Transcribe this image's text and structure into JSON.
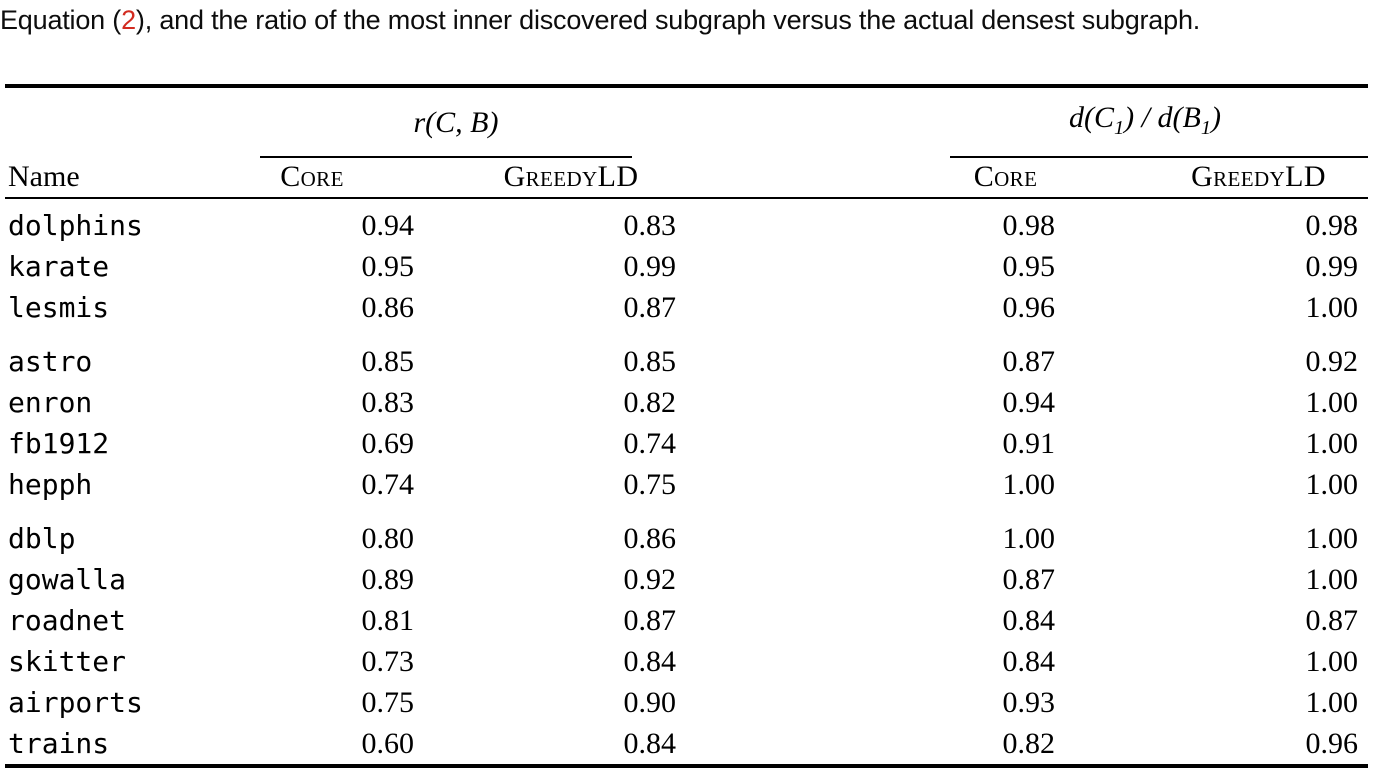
{
  "caption": {
    "prefix": "Equation (",
    "equation_ref": "2",
    "suffix": "), and the ratio of the most inner discovered subgraph versus the actual densest subgraph."
  },
  "table": {
    "group_headers": {
      "ratio": "r(C, B)",
      "density": {
        "pre": "d(C",
        "sub1": "1",
        "mid": ") / d(B",
        "sub2": "1",
        "post": ")"
      }
    },
    "col_headers": {
      "name": "Name",
      "core": "Core",
      "greedyld": "GreedyLD"
    },
    "groups": [
      [
        {
          "name": "dolphins",
          "rcb_core": "0.94",
          "rcb_greedyld": "0.83",
          "d_core": "0.98",
          "d_greedyld": "0.98"
        },
        {
          "name": "karate",
          "rcb_core": "0.95",
          "rcb_greedyld": "0.99",
          "d_core": "0.95",
          "d_greedyld": "0.99"
        },
        {
          "name": "lesmis",
          "rcb_core": "0.86",
          "rcb_greedyld": "0.87",
          "d_core": "0.96",
          "d_greedyld": "1.00"
        }
      ],
      [
        {
          "name": "astro",
          "rcb_core": "0.85",
          "rcb_greedyld": "0.85",
          "d_core": "0.87",
          "d_greedyld": "0.92"
        },
        {
          "name": "enron",
          "rcb_core": "0.83",
          "rcb_greedyld": "0.82",
          "d_core": "0.94",
          "d_greedyld": "1.00"
        },
        {
          "name": "fb1912",
          "rcb_core": "0.69",
          "rcb_greedyld": "0.74",
          "d_core": "0.91",
          "d_greedyld": "1.00"
        },
        {
          "name": "hepph",
          "rcb_core": "0.74",
          "rcb_greedyld": "0.75",
          "d_core": "1.00",
          "d_greedyld": "1.00"
        }
      ],
      [
        {
          "name": "dblp",
          "rcb_core": "0.80",
          "rcb_greedyld": "0.86",
          "d_core": "1.00",
          "d_greedyld": "1.00"
        },
        {
          "name": "gowalla",
          "rcb_core": "0.89",
          "rcb_greedyld": "0.92",
          "d_core": "0.87",
          "d_greedyld": "1.00"
        },
        {
          "name": "roadnet",
          "rcb_core": "0.81",
          "rcb_greedyld": "0.87",
          "d_core": "0.84",
          "d_greedyld": "0.87"
        },
        {
          "name": "skitter",
          "rcb_core": "0.73",
          "rcb_greedyld": "0.84",
          "d_core": "0.84",
          "d_greedyld": "1.00"
        },
        {
          "name": "airports",
          "rcb_core": "0.75",
          "rcb_greedyld": "0.90",
          "d_core": "0.93",
          "d_greedyld": "1.00"
        },
        {
          "name": "trains",
          "rcb_core": "0.60",
          "rcb_greedyld": "0.84",
          "d_core": "0.82",
          "d_greedyld": "0.96"
        }
      ]
    ]
  }
}
